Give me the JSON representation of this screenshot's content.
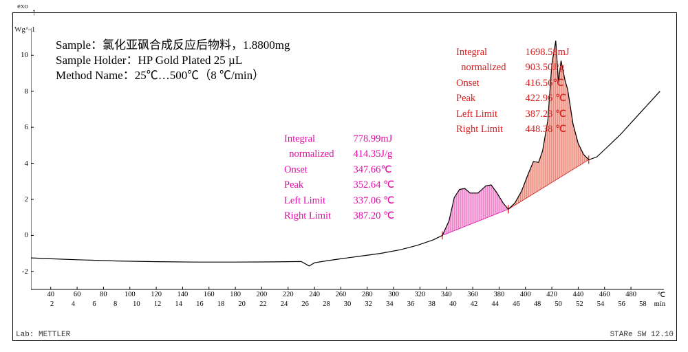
{
  "header": {
    "exo_label": "exo",
    "arrow": "↑",
    "yaxis_label": "Wg^-1"
  },
  "sample_info": {
    "line1": "Sample：氯化亚砜合成反应后物料，1.8800mg",
    "line2": "Sample Holder：HP Gold Plated 25 µL",
    "line3": "Method Name：25℃…500℃（8 ℃/min）"
  },
  "peak1": {
    "color": "#e20ba5",
    "rows": [
      [
        "Integral",
        "778.99mJ"
      ],
      [
        "  normalized",
        "414.35J/g"
      ],
      [
        "Onset",
        "347.66℃"
      ],
      [
        "Peak",
        "352.64 ℃"
      ],
      [
        "Left Limit",
        "337.06 ℃"
      ],
      [
        "Right Limit",
        "387.20 ℃"
      ]
    ]
  },
  "peak2": {
    "color": "#d42020",
    "rows": [
      [
        "Integral",
        "1698.58mJ"
      ],
      [
        "  normalized",
        "903.50J/g"
      ],
      [
        "Onset",
        "416.56℃"
      ],
      [
        "Peak",
        "422.96 ℃"
      ],
      [
        "Left Limit",
        "387.23 ℃"
      ],
      [
        "Right Limit",
        "448.38 ℃"
      ]
    ]
  },
  "axes": {
    "x_temp": {
      "min": 25,
      "max": 505,
      "ticks": [
        40,
        60,
        80,
        100,
        120,
        140,
        160,
        180,
        200,
        220,
        240,
        260,
        280,
        300,
        320,
        340,
        360,
        380,
        400,
        420,
        440,
        460,
        480
      ],
      "unit": "℃"
    },
    "x_time": {
      "min": 0,
      "max": 60,
      "ticks": [
        2,
        4,
        6,
        8,
        10,
        12,
        14,
        16,
        18,
        20,
        22,
        24,
        26,
        28,
        30,
        32,
        34,
        36,
        38,
        40,
        42,
        44,
        46,
        48,
        50,
        52,
        54,
        56,
        58
      ],
      "unit": "min"
    },
    "y": {
      "min": -3,
      "max": 11.5,
      "ticks": [
        -2,
        0,
        2,
        4,
        6,
        8,
        10
      ]
    }
  },
  "curve": {
    "color": "#000000",
    "width": 1.2,
    "points": [
      [
        25,
        -1.25
      ],
      [
        40,
        -1.3
      ],
      [
        60,
        -1.35
      ],
      [
        90,
        -1.42
      ],
      [
        120,
        -1.46
      ],
      [
        150,
        -1.48
      ],
      [
        180,
        -1.48
      ],
      [
        210,
        -1.47
      ],
      [
        230,
        -1.45
      ],
      [
        236,
        -1.7
      ],
      [
        240,
        -1.52
      ],
      [
        250,
        -1.4
      ],
      [
        260,
        -1.3
      ],
      [
        275,
        -1.15
      ],
      [
        290,
        -1.0
      ],
      [
        305,
        -0.8
      ],
      [
        318,
        -0.55
      ],
      [
        330,
        -0.25
      ],
      [
        337,
        0.0
      ],
      [
        342,
        0.8
      ],
      [
        346,
        2.1
      ],
      [
        350,
        2.55
      ],
      [
        354,
        2.6
      ],
      [
        358,
        2.35
      ],
      [
        364,
        2.35
      ],
      [
        370,
        2.75
      ],
      [
        374,
        2.8
      ],
      [
        378,
        2.4
      ],
      [
        383,
        1.8
      ],
      [
        387,
        1.45
      ],
      [
        392,
        1.8
      ],
      [
        397,
        2.45
      ],
      [
        402,
        3.4
      ],
      [
        406,
        4.1
      ],
      [
        410,
        4.05
      ],
      [
        413,
        4.7
      ],
      [
        417,
        6.4
      ],
      [
        420,
        9.5
      ],
      [
        423,
        10.8
      ],
      [
        425,
        8.5
      ],
      [
        427,
        9.7
      ],
      [
        430,
        8.6
      ],
      [
        432,
        8.1
      ],
      [
        436,
        6.2
      ],
      [
        440,
        5.1
      ],
      [
        444,
        4.5
      ],
      [
        448,
        4.2
      ],
      [
        454,
        4.35
      ],
      [
        462,
        4.9
      ],
      [
        472,
        5.6
      ],
      [
        482,
        6.4
      ],
      [
        492,
        7.2
      ],
      [
        502,
        8.0
      ]
    ]
  },
  "fills": {
    "peak1": {
      "fill": "#f4b1dd",
      "stroke": "#e20ba5",
      "baseline": [
        [
          337,
          0.0
        ],
        [
          387,
          1.45
        ]
      ],
      "top_from": 337,
      "top_to": 387
    },
    "peak2": {
      "fill": "#f3b6a8",
      "stroke": "#d42020",
      "baseline": [
        [
          387,
          1.45
        ],
        [
          448,
          4.2
        ]
      ],
      "top_from": 387,
      "top_to": 448
    }
  },
  "footer": {
    "left": "Lab: METTLER",
    "right": "STARe SW 12.10"
  },
  "style": {
    "chart_bg": "#ffffff",
    "axis_color": "#000000",
    "tick_len": 4,
    "hatch_spacing": 3
  }
}
